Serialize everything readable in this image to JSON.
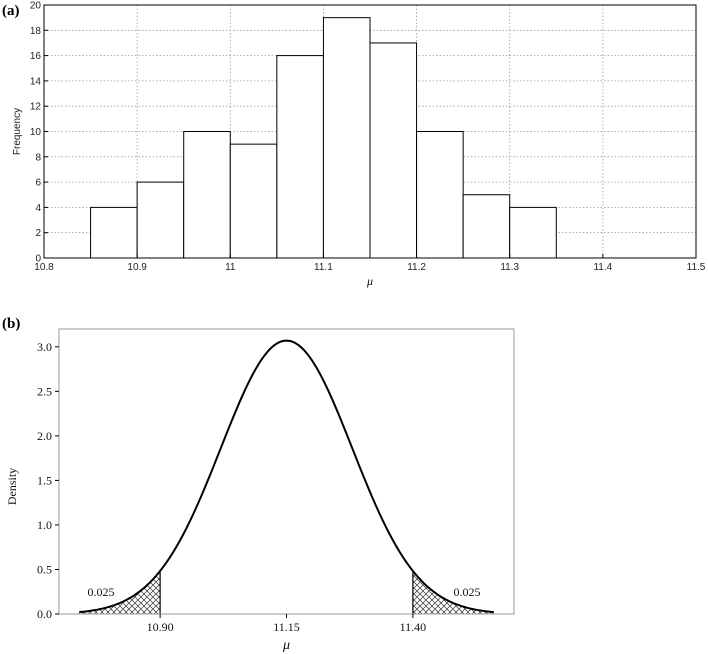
{
  "panels": {
    "a_label": "(a)",
    "b_label": "(b)"
  },
  "chart_data": [
    {
      "type": "bar",
      "panel": "(a)",
      "xlabel": "μ",
      "ylabel": "Frequency",
      "xlim": [
        10.8,
        11.5
      ],
      "ylim": [
        0,
        20
      ],
      "xticks": [
        10.8,
        10.9,
        11.0,
        11.1,
        11.2,
        11.3,
        11.4,
        11.5
      ],
      "xtick_labels": [
        "10.8",
        "10.9",
        "11",
        "11.1",
        "11.2",
        "11.3",
        "11.4",
        "11.5"
      ],
      "yticks": [
        0,
        2,
        4,
        6,
        8,
        10,
        12,
        14,
        16,
        18,
        20
      ],
      "ytick_labels": [
        "0",
        "2",
        "4",
        "6",
        "8",
        "10",
        "12",
        "14",
        "16",
        "18",
        "20"
      ],
      "grid": true,
      "bins": [
        {
          "x0": 10.85,
          "x1": 10.9,
          "count": 4
        },
        {
          "x0": 10.9,
          "x1": 10.95,
          "count": 6
        },
        {
          "x0": 10.95,
          "x1": 11.0,
          "count": 10
        },
        {
          "x0": 11.0,
          "x1": 11.05,
          "count": 9
        },
        {
          "x0": 11.05,
          "x1": 11.1,
          "count": 16
        },
        {
          "x0": 11.1,
          "x1": 11.15,
          "count": 19
        },
        {
          "x0": 11.15,
          "x1": 11.2,
          "count": 17
        },
        {
          "x0": 11.2,
          "x1": 11.25,
          "count": 10
        },
        {
          "x0": 11.25,
          "x1": 11.3,
          "count": 5
        },
        {
          "x0": 11.3,
          "x1": 11.35,
          "count": 4
        }
      ]
    },
    {
      "type": "line",
      "panel": "(b)",
      "xlabel": "μ",
      "ylabel": "Density",
      "xlim": [
        10.7,
        11.6
      ],
      "ylim": [
        0,
        3.2
      ],
      "xticks": [
        10.9,
        11.15,
        11.4
      ],
      "xtick_labels": [
        "10.90",
        "11.15",
        "11.40"
      ],
      "yticks": [
        0,
        0.5,
        1.0,
        1.5,
        2.0,
        2.5,
        3.0
      ],
      "ytick_labels": [
        "0.0",
        "0.5",
        "1.0",
        "1.5",
        "2.0",
        "2.5",
        "3.0"
      ],
      "grid": false,
      "curve": {
        "distribution": "normal",
        "mean": 11.15,
        "sd": 0.13,
        "peak": 3.07
      },
      "shaded_tails": [
        {
          "from": 10.7,
          "to": 10.9,
          "label": "0.025"
        },
        {
          "from": 11.4,
          "to": 11.6,
          "label": "0.025"
        }
      ]
    }
  ]
}
